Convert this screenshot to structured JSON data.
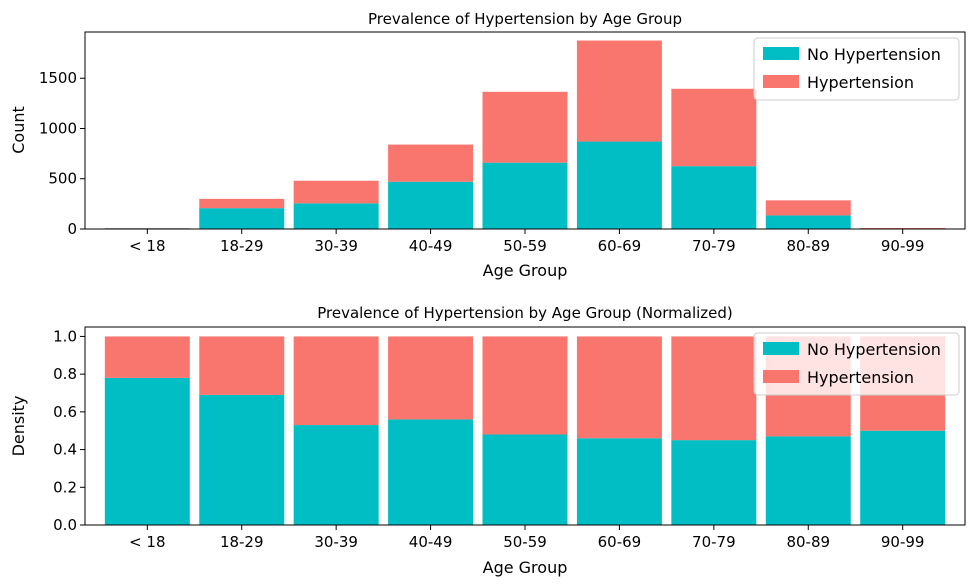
{
  "chart_data": [
    {
      "type": "bar",
      "stacked": true,
      "title": "Prevalence of Hypertension by Age Group",
      "xlabel": "Age Group",
      "ylabel": "Count",
      "categories": [
        "< 18",
        "18-29",
        "30-39",
        "40-49",
        "50-59",
        "60-69",
        "70-79",
        "80-89",
        "90-99"
      ],
      "series": [
        {
          "name": "No Hypertension",
          "color": "#00bec4",
          "values": [
            7,
            207,
            255,
            470,
            660,
            870,
            625,
            135,
            5
          ]
        },
        {
          "name": "Hypertension",
          "color": "#f8766d",
          "values": [
            2,
            93,
            225,
            370,
            705,
            1005,
            770,
            150,
            5
          ]
        }
      ],
      "ylim": [
        0,
        1960
      ],
      "yticks": [
        0,
        500,
        1000,
        1500
      ],
      "legend": "upper-right",
      "grid": false
    },
    {
      "type": "bar",
      "stacked": true,
      "title": "Prevalence of Hypertension by Age Group (Normalized)",
      "xlabel": "Age Group",
      "ylabel": "Density",
      "categories": [
        "< 18",
        "18-29",
        "30-39",
        "40-49",
        "50-59",
        "60-69",
        "70-79",
        "80-89",
        "90-99"
      ],
      "series": [
        {
          "name": "No Hypertension",
          "color": "#00bec4",
          "values": [
            0.78,
            0.69,
            0.53,
            0.56,
            0.48,
            0.46,
            0.45,
            0.47,
            0.5
          ]
        },
        {
          "name": "Hypertension",
          "color": "#f8766d",
          "values": [
            0.22,
            0.31,
            0.47,
            0.44,
            0.52,
            0.54,
            0.55,
            0.53,
            0.5
          ]
        }
      ],
      "ylim": [
        0,
        1.05
      ],
      "yticks": [
        "0.0",
        "0.2",
        "0.4",
        "0.6",
        "0.8",
        "1.0"
      ],
      "legend": "upper-right",
      "grid": false
    }
  ]
}
